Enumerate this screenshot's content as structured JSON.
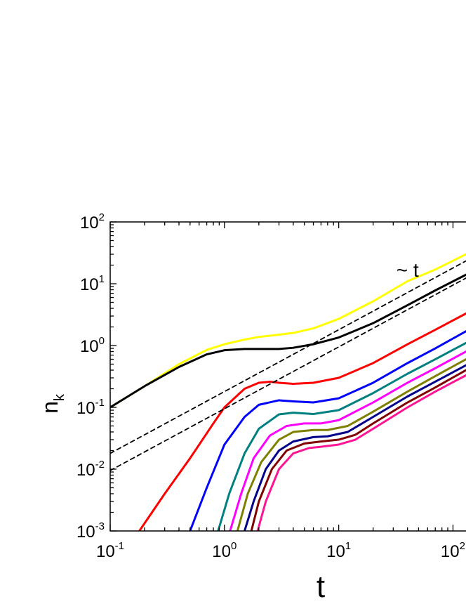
{
  "chart_data": {
    "type": "line",
    "xlabel": "t",
    "ylabel": "n",
    "ylabel_subscript": "k",
    "x_scale": "log",
    "y_scale": "log",
    "xlim": [
      0.1,
      130
    ],
    "ylim": [
      0.001,
      100
    ],
    "x_ticks": [
      {
        "base": "10",
        "exp": "-1",
        "value": 0.1
      },
      {
        "base": "10",
        "exp": "0",
        "value": 1
      },
      {
        "base": "10",
        "exp": "1",
        "value": 10
      },
      {
        "base": "10",
        "exp": "2",
        "value": 100
      }
    ],
    "y_ticks": [
      {
        "base": "10",
        "exp": "-3",
        "value": 0.001
      },
      {
        "base": "10",
        "exp": "-2",
        "value": 0.01
      },
      {
        "base": "10",
        "exp": "-1",
        "value": 0.1
      },
      {
        "base": "10",
        "exp": "0",
        "value": 1
      },
      {
        "base": "10",
        "exp": "1",
        "value": 10
      },
      {
        "base": "10",
        "exp": "2",
        "value": 100
      }
    ],
    "grid": false,
    "annotations": [
      {
        "text": "~ t",
        "x": 40,
        "y": 13
      }
    ],
    "series": [
      {
        "color": "#ffff00",
        "points": [
          [
            0.1,
            0.1
          ],
          [
            0.2,
            0.22
          ],
          [
            0.4,
            0.5
          ],
          [
            0.7,
            0.85
          ],
          [
            1,
            1.05
          ],
          [
            1.5,
            1.25
          ],
          [
            2,
            1.38
          ],
          [
            3,
            1.5
          ],
          [
            4,
            1.6
          ],
          [
            6,
            1.9
          ],
          [
            10,
            2.7
          ],
          [
            20,
            5.2
          ],
          [
            40,
            11
          ],
          [
            70,
            17
          ],
          [
            130,
            30
          ]
        ]
      },
      {
        "color": "#000000",
        "points": [
          [
            0.1,
            0.1
          ],
          [
            0.2,
            0.22
          ],
          [
            0.4,
            0.45
          ],
          [
            0.7,
            0.72
          ],
          [
            1,
            0.84
          ],
          [
            1.5,
            0.88
          ],
          [
            2,
            0.88
          ],
          [
            3,
            0.88
          ],
          [
            4,
            0.92
          ],
          [
            6,
            1.05
          ],
          [
            10,
            1.35
          ],
          [
            20,
            2.3
          ],
          [
            40,
            4.5
          ],
          [
            70,
            7.8
          ],
          [
            130,
            14
          ]
        ]
      },
      {
        "color": "#ff0000",
        "points": [
          [
            0.18,
            0.001
          ],
          [
            0.3,
            0.004
          ],
          [
            0.5,
            0.015
          ],
          [
            0.8,
            0.055
          ],
          [
            1,
            0.1
          ],
          [
            1.5,
            0.2
          ],
          [
            2,
            0.25
          ],
          [
            2.5,
            0.26
          ],
          [
            3,
            0.25
          ],
          [
            4,
            0.24
          ],
          [
            6,
            0.25
          ],
          [
            10,
            0.3
          ],
          [
            20,
            0.52
          ],
          [
            40,
            1.05
          ],
          [
            70,
            1.8
          ],
          [
            130,
            3.3
          ]
        ]
      },
      {
        "color": "#0000ff",
        "points": [
          [
            0.5,
            0.001
          ],
          [
            0.7,
            0.005
          ],
          [
            1,
            0.025
          ],
          [
            1.5,
            0.07
          ],
          [
            2,
            0.11
          ],
          [
            3,
            0.13
          ],
          [
            4,
            0.125
          ],
          [
            6,
            0.12
          ],
          [
            10,
            0.14
          ],
          [
            20,
            0.25
          ],
          [
            40,
            0.52
          ],
          [
            70,
            0.9
          ],
          [
            130,
            1.7
          ]
        ]
      },
      {
        "color": "#008080",
        "points": [
          [
            0.88,
            0.001
          ],
          [
            1.1,
            0.004
          ],
          [
            1.5,
            0.018
          ],
          [
            2,
            0.045
          ],
          [
            3,
            0.077
          ],
          [
            4,
            0.082
          ],
          [
            6,
            0.078
          ],
          [
            10,
            0.09
          ],
          [
            20,
            0.17
          ],
          [
            40,
            0.35
          ],
          [
            70,
            0.6
          ],
          [
            130,
            1.1
          ]
        ]
      },
      {
        "color": "#ff00ff",
        "points": [
          [
            1.12,
            0.001
          ],
          [
            1.4,
            0.004
          ],
          [
            1.8,
            0.015
          ],
          [
            2.5,
            0.035
          ],
          [
            3.5,
            0.05
          ],
          [
            5,
            0.055
          ],
          [
            7,
            0.055
          ],
          [
            10,
            0.062
          ],
          [
            20,
            0.12
          ],
          [
            40,
            0.25
          ],
          [
            70,
            0.43
          ],
          [
            130,
            0.8
          ]
        ]
      },
      {
        "color": "#808000",
        "points": [
          [
            1.3,
            0.001
          ],
          [
            1.6,
            0.004
          ],
          [
            2.1,
            0.013
          ],
          [
            3,
            0.03
          ],
          [
            4,
            0.04
          ],
          [
            6,
            0.043
          ],
          [
            8,
            0.043
          ],
          [
            12,
            0.05
          ],
          [
            20,
            0.085
          ],
          [
            40,
            0.18
          ],
          [
            70,
            0.32
          ],
          [
            130,
            0.6
          ]
        ]
      },
      {
        "color": "#00008b",
        "points": [
          [
            1.5,
            0.001
          ],
          [
            1.8,
            0.003
          ],
          [
            2.3,
            0.01
          ],
          [
            3,
            0.02
          ],
          [
            4,
            0.028
          ],
          [
            6,
            0.033
          ],
          [
            8,
            0.034
          ],
          [
            12,
            0.04
          ],
          [
            20,
            0.07
          ],
          [
            40,
            0.15
          ],
          [
            70,
            0.26
          ],
          [
            130,
            0.48
          ]
        ]
      },
      {
        "color": "#800000",
        "points": [
          [
            1.72,
            0.001
          ],
          [
            2,
            0.003
          ],
          [
            2.6,
            0.01
          ],
          [
            3.5,
            0.02
          ],
          [
            5,
            0.026
          ],
          [
            7,
            0.028
          ],
          [
            10,
            0.03
          ],
          [
            14,
            0.036
          ],
          [
            20,
            0.055
          ],
          [
            40,
            0.12
          ],
          [
            70,
            0.21
          ],
          [
            130,
            0.4
          ]
        ]
      },
      {
        "color": "#ff1493",
        "points": [
          [
            1.95,
            0.001
          ],
          [
            2.3,
            0.003
          ],
          [
            3,
            0.01
          ],
          [
            4,
            0.018
          ],
          [
            5.5,
            0.022
          ],
          [
            7,
            0.023
          ],
          [
            10,
            0.025
          ],
          [
            14,
            0.03
          ],
          [
            20,
            0.045
          ],
          [
            40,
            0.1
          ],
          [
            70,
            0.18
          ],
          [
            130,
            0.33
          ]
        ]
      },
      {
        "color": "#000000",
        "dashed": true,
        "points": [
          [
            0.1,
            0.018
          ],
          [
            130,
            23.4
          ]
        ]
      },
      {
        "color": "#000000",
        "dashed": true,
        "points": [
          [
            0.1,
            0.0095
          ],
          [
            130,
            12.35
          ]
        ]
      }
    ]
  }
}
